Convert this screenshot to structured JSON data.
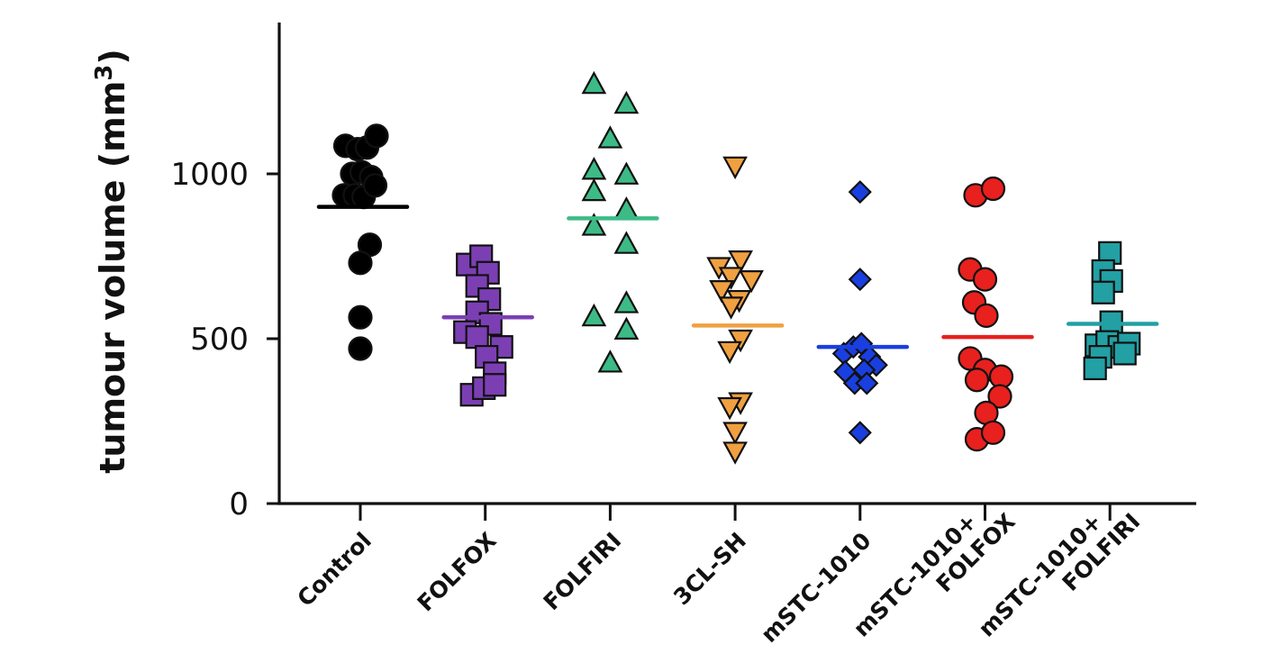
{
  "chart_data": {
    "type": "scatter",
    "ylabel": "tumour volume (mm",
    "ylabel_sup": "3",
    "ylabel_close": ")",
    "ylim": [
      0,
      1450
    ],
    "yticks": [
      0,
      500,
      1000
    ],
    "grid": false,
    "categories": [
      "Control",
      "FOLFOX",
      "FOLFIRI",
      "3CL-SH",
      "mSTC-1010",
      "mSTC-1010+ FOLFOX",
      "mSTC-1010+ FOLFIRI"
    ],
    "category_lines": [
      [
        "Control"
      ],
      [
        "FOLFOX"
      ],
      [
        "FOLFIRI"
      ],
      [
        "3CL-SH"
      ],
      [
        "mSTC-1010"
      ],
      [
        "mSTC-1010+",
        "FOLFOX"
      ],
      [
        "mSTC-1010+",
        "FOLFIRI"
      ]
    ],
    "series": [
      {
        "category": "Control",
        "marker": "circle",
        "color": "#000000",
        "mean": 900,
        "points": [
          {
            "offset": -0.22,
            "y": 1085
          },
          {
            "offset": -0.04,
            "y": 1075
          },
          {
            "offset": 0.1,
            "y": 1080
          },
          {
            "offset": 0.24,
            "y": 1115
          },
          {
            "offset": -0.12,
            "y": 1000
          },
          {
            "offset": 0.02,
            "y": 1005
          },
          {
            "offset": 0.16,
            "y": 990
          },
          {
            "offset": -0.24,
            "y": 935
          },
          {
            "offset": -0.08,
            "y": 935
          },
          {
            "offset": 0.05,
            "y": 930
          },
          {
            "offset": 0.22,
            "y": 965
          },
          {
            "offset": 0.14,
            "y": 785
          },
          {
            "offset": 0.0,
            "y": 730
          },
          {
            "offset": 0.0,
            "y": 565
          },
          {
            "offset": 0.0,
            "y": 470
          }
        ]
      },
      {
        "category": "FOLFOX",
        "marker": "square",
        "color": "#7B3FB3",
        "mean": 565,
        "points": [
          {
            "offset": -0.26,
            "y": 725
          },
          {
            "offset": -0.06,
            "y": 750
          },
          {
            "offset": 0.04,
            "y": 700
          },
          {
            "offset": -0.12,
            "y": 660
          },
          {
            "offset": 0.06,
            "y": 620
          },
          {
            "offset": -0.12,
            "y": 580
          },
          {
            "offset": 0.08,
            "y": 545
          },
          {
            "offset": -0.3,
            "y": 520
          },
          {
            "offset": -0.12,
            "y": 505
          },
          {
            "offset": 0.24,
            "y": 475
          },
          {
            "offset": 0.02,
            "y": 445
          },
          {
            "offset": 0.14,
            "y": 395
          },
          {
            "offset": -0.2,
            "y": 330
          },
          {
            "offset": -0.02,
            "y": 350
          },
          {
            "offset": 0.14,
            "y": 360
          }
        ]
      },
      {
        "category": "FOLFIRI",
        "marker": "triangle-up",
        "color": "#3DBB87",
        "mean": 865,
        "points": [
          {
            "offset": -0.24,
            "y": 1270
          },
          {
            "offset": 0.24,
            "y": 1210
          },
          {
            "offset": 0.0,
            "y": 1105
          },
          {
            "offset": -0.24,
            "y": 1010
          },
          {
            "offset": 0.24,
            "y": 995
          },
          {
            "offset": -0.24,
            "y": 945
          },
          {
            "offset": 0.24,
            "y": 890
          },
          {
            "offset": -0.24,
            "y": 840
          },
          {
            "offset": 0.24,
            "y": 785
          },
          {
            "offset": 0.24,
            "y": 605
          },
          {
            "offset": -0.24,
            "y": 565
          },
          {
            "offset": 0.24,
            "y": 525
          },
          {
            "offset": 0.0,
            "y": 425
          }
        ]
      },
      {
        "category": "3CL-SH",
        "marker": "triangle-down",
        "color": "#F0A040",
        "mean": 540,
        "points": [
          {
            "offset": 0.0,
            "y": 1025
          },
          {
            "offset": 0.08,
            "y": 740
          },
          {
            "offset": -0.24,
            "y": 720
          },
          {
            "offset": 0.24,
            "y": 680
          },
          {
            "offset": -0.06,
            "y": 690
          },
          {
            "offset": -0.2,
            "y": 650
          },
          {
            "offset": 0.06,
            "y": 620
          },
          {
            "offset": -0.06,
            "y": 600
          },
          {
            "offset": 0.08,
            "y": 500
          },
          {
            "offset": -0.08,
            "y": 465
          },
          {
            "offset": 0.08,
            "y": 310
          },
          {
            "offset": -0.08,
            "y": 295
          },
          {
            "offset": 0.0,
            "y": 220
          },
          {
            "offset": 0.0,
            "y": 160
          }
        ]
      },
      {
        "category": "mSTC-1010",
        "marker": "diamond",
        "color": "#1A3FE0",
        "mean": 475,
        "points": [
          {
            "offset": 0.0,
            "y": 945
          },
          {
            "offset": 0.0,
            "y": 680
          },
          {
            "offset": -0.24,
            "y": 455
          },
          {
            "offset": -0.1,
            "y": 475
          },
          {
            "offset": 0.02,
            "y": 485
          },
          {
            "offset": 0.14,
            "y": 445
          },
          {
            "offset": 0.24,
            "y": 420
          },
          {
            "offset": -0.22,
            "y": 400
          },
          {
            "offset": 0.06,
            "y": 405
          },
          {
            "offset": -0.08,
            "y": 365
          },
          {
            "offset": 0.1,
            "y": 365
          },
          {
            "offset": 0.0,
            "y": 215
          }
        ]
      },
      {
        "category": "mSTC-1010+ FOLFOX",
        "marker": "circle",
        "color": "#E8201E",
        "mean": 505,
        "points": [
          {
            "offset": -0.14,
            "y": 935
          },
          {
            "offset": 0.12,
            "y": 955
          },
          {
            "offset": -0.22,
            "y": 710
          },
          {
            "offset": 0.0,
            "y": 680
          },
          {
            "offset": -0.16,
            "y": 610
          },
          {
            "offset": 0.02,
            "y": 570
          },
          {
            "offset": -0.22,
            "y": 440
          },
          {
            "offset": 0.0,
            "y": 405
          },
          {
            "offset": 0.24,
            "y": 385
          },
          {
            "offset": -0.12,
            "y": 375
          },
          {
            "offset": 0.22,
            "y": 325
          },
          {
            "offset": 0.02,
            "y": 275
          },
          {
            "offset": -0.12,
            "y": 195
          },
          {
            "offset": 0.12,
            "y": 215
          }
        ]
      },
      {
        "category": "mSTC-1010+ FOLFIRI",
        "marker": "square",
        "color": "#22A0A4",
        "mean": 545,
        "points": [
          {
            "offset": 0.0,
            "y": 760
          },
          {
            "offset": -0.1,
            "y": 705
          },
          {
            "offset": 0.02,
            "y": 675
          },
          {
            "offset": -0.1,
            "y": 640
          },
          {
            "offset": 0.02,
            "y": 550
          },
          {
            "offset": -0.2,
            "y": 480
          },
          {
            "offset": -0.04,
            "y": 490
          },
          {
            "offset": 0.14,
            "y": 475
          },
          {
            "offset": 0.28,
            "y": 485
          },
          {
            "offset": -0.14,
            "y": 445
          },
          {
            "offset": 0.22,
            "y": 455
          },
          {
            "offset": -0.22,
            "y": 410
          }
        ]
      }
    ]
  }
}
